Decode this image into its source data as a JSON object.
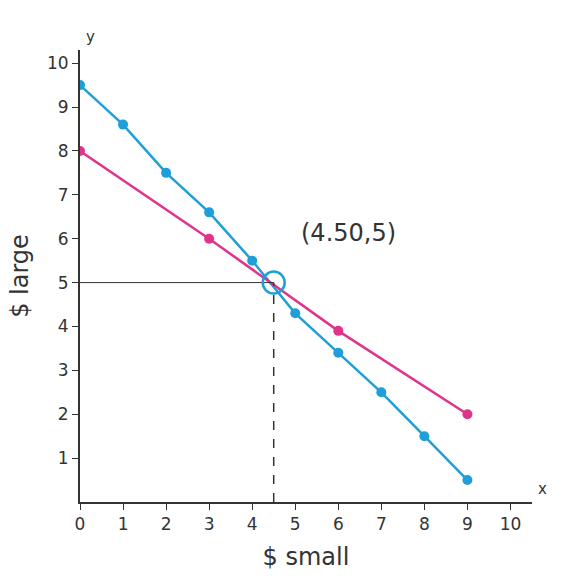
{
  "chart_data": {
    "type": "line",
    "x_label": "$ small",
    "y_label": "$ large",
    "series": [
      {
        "color": "#1e9fd8",
        "marker": "circle",
        "x": [
          0,
          1,
          2,
          3,
          4,
          5,
          6,
          7,
          8,
          9
        ],
        "values": [
          9.5,
          8.6,
          7.5,
          6.6,
          5.5,
          4.3,
          3.4,
          2.5,
          1.5,
          0.5
        ]
      },
      {
        "color": "#e0338a",
        "marker": "circle",
        "x": [
          0,
          3,
          6,
          9
        ],
        "values": [
          8,
          6,
          3.9,
          2
        ]
      }
    ],
    "annotations": [
      {
        "text": "(4.50,5)",
        "x": 4.5,
        "y": 5
      },
      {
        "text": "x",
        "x": 10.5,
        "y": 0
      },
      {
        "text": "y",
        "x": 0,
        "y": 10.3
      }
    ],
    "xlim": [
      0,
      10.5
    ],
    "ylim": [
      0,
      10.3
    ],
    "xticks": [
      0,
      1,
      2,
      3,
      4,
      5,
      6,
      7,
      8,
      9,
      10
    ],
    "yticks": [
      1,
      2,
      3,
      4,
      5,
      6,
      7,
      8,
      9,
      10
    ],
    "grid": false
  }
}
